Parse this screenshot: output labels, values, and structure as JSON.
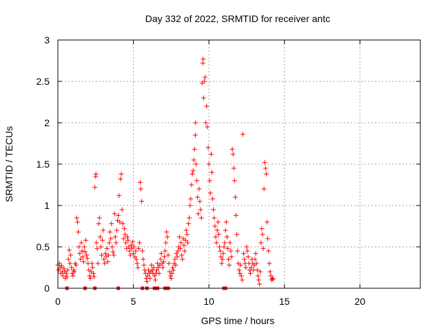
{
  "chart_data": {
    "type": "scatter",
    "title": "Day 332 of 2022, SRMTID for receiver antc",
    "xlabel": "GPS time / hours",
    "ylabel": "SRMTID / TECUs",
    "xlim": [
      0,
      24
    ],
    "ylim": [
      0,
      3
    ],
    "grid": true,
    "x_ticks": [
      0,
      5,
      10,
      15,
      20
    ],
    "x_tick_labels": [
      "0",
      "5",
      "10",
      "15",
      "20"
    ],
    "y_ticks": [
      0,
      0.5,
      1,
      1.5,
      2,
      2.5,
      3
    ],
    "y_tick_labels": [
      "0",
      "0.5",
      "1",
      "1.5",
      "2",
      "2.5",
      "3"
    ],
    "marker": "+",
    "color": "#ff0000",
    "series": [
      {
        "name": "SRMTID",
        "points": [
          [
            0.0,
            0.28
          ],
          [
            0.05,
            0.22
          ],
          [
            0.1,
            0.3
          ],
          [
            0.15,
            0.25
          ],
          [
            0.2,
            0.18
          ],
          [
            0.25,
            0.27
          ],
          [
            0.3,
            0.2
          ],
          [
            0.35,
            0.15
          ],
          [
            0.4,
            0.24
          ],
          [
            0.45,
            0.2
          ],
          [
            0.5,
            0.12
          ],
          [
            0.55,
            0.18
          ],
          [
            0.6,
            0.14
          ],
          [
            0.65,
            0.22
          ],
          [
            0.7,
            0.35
          ],
          [
            0.75,
            0.46
          ],
          [
            0.8,
            0.3
          ],
          [
            0.85,
            0.4
          ],
          [
            0.9,
            0.25
          ],
          [
            0.95,
            0.18
          ],
          [
            1.0,
            0.15
          ],
          [
            1.05,
            0.22
          ],
          [
            1.1,
            0.2
          ],
          [
            1.15,
            0.3
          ],
          [
            1.2,
            0.28
          ],
          [
            1.25,
            0.85
          ],
          [
            1.3,
            0.8
          ],
          [
            1.35,
            0.68
          ],
          [
            1.4,
            0.5
          ],
          [
            1.45,
            0.42
          ],
          [
            1.5,
            0.35
          ],
          [
            1.55,
            0.55
          ],
          [
            1.6,
            0.45
          ],
          [
            1.65,
            0.38
          ],
          [
            1.7,
            0.32
          ],
          [
            1.75,
            0.5
          ],
          [
            1.8,
            0.44
          ],
          [
            1.85,
            0.58
          ],
          [
            1.9,
            0.4
          ],
          [
            1.95,
            0.36
          ],
          [
            2.0,
            0.3
          ],
          [
            2.05,
            0.22
          ],
          [
            2.1,
            0.15
          ],
          [
            2.15,
            0.12
          ],
          [
            2.2,
            0.2
          ],
          [
            2.25,
            0.3
          ],
          [
            2.3,
            0.25
          ],
          [
            2.35,
            0.18
          ],
          [
            2.4,
            0.14
          ],
          [
            2.45,
            1.22
          ],
          [
            2.5,
            1.35
          ],
          [
            2.52,
            1.38
          ],
          [
            2.55,
            0.55
          ],
          [
            2.6,
            0.48
          ],
          [
            2.65,
            0.3
          ],
          [
            2.7,
            0.78
          ],
          [
            2.75,
            0.85
          ],
          [
            2.8,
            0.62
          ],
          [
            2.85,
            0.5
          ],
          [
            2.9,
            0.4
          ],
          [
            2.95,
            0.58
          ],
          [
            3.0,
            0.7
          ],
          [
            3.05,
            0.35
          ],
          [
            3.1,
            0.3
          ],
          [
            3.15,
            0.42
          ],
          [
            3.2,
            0.38
          ],
          [
            3.25,
            0.48
          ],
          [
            3.3,
            0.32
          ],
          [
            3.35,
            0.4
          ],
          [
            3.4,
            0.55
          ],
          [
            3.45,
            0.68
          ],
          [
            3.5,
            0.6
          ],
          [
            3.55,
            0.78
          ],
          [
            3.6,
            0.5
          ],
          [
            3.65,
            0.44
          ],
          [
            3.7,
            0.4
          ],
          [
            3.75,
            0.9
          ],
          [
            3.8,
            0.62
          ],
          [
            3.85,
            0.55
          ],
          [
            3.9,
            0.7
          ],
          [
            3.95,
            0.82
          ],
          [
            4.0,
            0.88
          ],
          [
            4.05,
            1.12
          ],
          [
            4.1,
            0.8
          ],
          [
            4.15,
            1.32
          ],
          [
            4.2,
            1.38
          ],
          [
            4.25,
            0.95
          ],
          [
            4.3,
            0.78
          ],
          [
            4.35,
            0.6
          ],
          [
            4.4,
            0.72
          ],
          [
            4.45,
            0.65
          ],
          [
            4.5,
            0.55
          ],
          [
            4.55,
            0.48
          ],
          [
            4.6,
            0.62
          ],
          [
            4.65,
            0.58
          ],
          [
            4.7,
            0.5
          ],
          [
            4.75,
            0.45
          ],
          [
            4.8,
            0.4
          ],
          [
            4.85,
            0.52
          ],
          [
            4.9,
            0.48
          ],
          [
            4.95,
            0.56
          ],
          [
            5.0,
            0.42
          ],
          [
            5.05,
            0.5
          ],
          [
            5.1,
            0.38
          ],
          [
            5.15,
            0.45
          ],
          [
            5.2,
            0.35
          ],
          [
            5.25,
            0.3
          ],
          [
            5.3,
            0.25
          ],
          [
            5.35,
            0.48
          ],
          [
            5.4,
            0.55
          ],
          [
            5.45,
            1.28
          ],
          [
            5.5,
            1.2
          ],
          [
            5.55,
            1.05
          ],
          [
            5.6,
            0.45
          ],
          [
            5.65,
            0.35
          ],
          [
            5.7,
            0.28
          ],
          [
            5.75,
            0.22
          ],
          [
            5.8,
            0.18
          ],
          [
            5.85,
            0.12
          ],
          [
            5.9,
            0.08
          ],
          [
            5.95,
            0.15
          ],
          [
            6.0,
            0.22
          ],
          [
            6.05,
            0.18
          ],
          [
            6.1,
            0.12
          ],
          [
            6.15,
            0.2
          ],
          [
            6.2,
            0.28
          ],
          [
            6.25,
            0.22
          ],
          [
            6.3,
            0.18
          ],
          [
            6.35,
            0.25
          ],
          [
            6.4,
            0.15
          ],
          [
            6.45,
            0.1
          ],
          [
            6.5,
            0.18
          ],
          [
            6.55,
            0.22
          ],
          [
            6.6,
            0.3
          ],
          [
            6.65,
            0.25
          ],
          [
            6.7,
            0.18
          ],
          [
            6.75,
            0.28
          ],
          [
            6.8,
            0.35
          ],
          [
            6.85,
            0.42
          ],
          [
            6.9,
            0.3
          ],
          [
            6.95,
            0.25
          ],
          [
            7.0,
            0.32
          ],
          [
            7.05,
            0.38
          ],
          [
            7.1,
            0.45
          ],
          [
            7.15,
            0.55
          ],
          [
            7.2,
            0.68
          ],
          [
            7.25,
            0.62
          ],
          [
            7.3,
            0.4
          ],
          [
            7.35,
            0.3
          ],
          [
            7.4,
            0.2
          ],
          [
            7.45,
            0.15
          ],
          [
            7.5,
            0.12
          ],
          [
            7.55,
            0.18
          ],
          [
            7.6,
            0.25
          ],
          [
            7.65,
            0.22
          ],
          [
            7.7,
            0.3
          ],
          [
            7.75,
            0.35
          ],
          [
            7.8,
            0.28
          ],
          [
            7.85,
            0.42
          ],
          [
            7.9,
            0.38
          ],
          [
            7.95,
            0.45
          ],
          [
            8.0,
            0.5
          ],
          [
            8.05,
            0.62
          ],
          [
            8.1,
            0.48
          ],
          [
            8.15,
            0.55
          ],
          [
            8.2,
            0.4
          ],
          [
            8.25,
            0.35
          ],
          [
            8.3,
            0.6
          ],
          [
            8.35,
            0.52
          ],
          [
            8.4,
            0.45
          ],
          [
            8.45,
            0.58
          ],
          [
            8.5,
            0.7
          ],
          [
            8.55,
            0.65
          ],
          [
            8.6,
            0.55
          ],
          [
            8.65,
            0.78
          ],
          [
            8.7,
            0.85
          ],
          [
            8.75,
            1.0
          ],
          [
            8.8,
            1.08
          ],
          [
            8.85,
            1.25
          ],
          [
            8.9,
            1.38
          ],
          [
            8.95,
            1.42
          ],
          [
            9.0,
            1.55
          ],
          [
            9.05,
            1.68
          ],
          [
            9.1,
            1.85
          ],
          [
            9.12,
            2.0
          ],
          [
            9.15,
            1.5
          ],
          [
            9.2,
            1.3
          ],
          [
            9.25,
            1.1
          ],
          [
            9.3,
            0.9
          ],
          [
            9.35,
            1.2
          ],
          [
            9.4,
            1.05
          ],
          [
            9.45,
            0.95
          ],
          [
            9.5,
            0.85
          ],
          [
            9.55,
            2.48
          ],
          [
            9.6,
            2.72
          ],
          [
            9.62,
            2.77
          ],
          [
            9.65,
            2.3
          ],
          [
            9.7,
            2.5
          ],
          [
            9.75,
            2.55
          ],
          [
            9.8,
            2.0
          ],
          [
            9.85,
            2.2
          ],
          [
            9.9,
            1.95
          ],
          [
            9.95,
            1.7
          ],
          [
            10.0,
            1.5
          ],
          [
            10.05,
            1.3
          ],
          [
            10.1,
            1.15
          ],
          [
            10.15,
            1.62
          ],
          [
            10.2,
            1.4
          ],
          [
            10.25,
            1.08
          ],
          [
            10.3,
            0.95
          ],
          [
            10.35,
            0.85
          ],
          [
            10.4,
            0.75
          ],
          [
            10.45,
            0.62
          ],
          [
            10.5,
            0.55
          ],
          [
            10.55,
            0.7
          ],
          [
            10.6,
            0.8
          ],
          [
            10.65,
            0.65
          ],
          [
            10.7,
            0.5
          ],
          [
            10.75,
            0.45
          ],
          [
            10.8,
            0.38
          ],
          [
            10.85,
            0.3
          ],
          [
            10.9,
            0.35
          ],
          [
            10.95,
            0.42
          ],
          [
            11.0,
            0.5
          ],
          [
            11.05,
            0.55
          ],
          [
            11.1,
            0.7
          ],
          [
            11.15,
            0.8
          ],
          [
            11.2,
            0.62
          ],
          [
            11.25,
            0.48
          ],
          [
            11.3,
            0.35
          ],
          [
            11.35,
            0.28
          ],
          [
            11.4,
            0.55
          ],
          [
            11.45,
            0.45
          ],
          [
            11.5,
            0.38
          ],
          [
            11.55,
            1.68
          ],
          [
            11.6,
            1.62
          ],
          [
            11.65,
            1.45
          ],
          [
            11.7,
            1.3
          ],
          [
            11.75,
            1.1
          ],
          [
            11.8,
            0.88
          ],
          [
            11.85,
            0.65
          ],
          [
            11.9,
            0.45
          ],
          [
            11.95,
            0.3
          ],
          [
            12.0,
            0.22
          ],
          [
            12.05,
            0.18
          ],
          [
            12.1,
            0.28
          ],
          [
            12.15,
            0.15
          ],
          [
            12.2,
            0.1
          ],
          [
            12.25,
            1.86
          ],
          [
            12.3,
            0.42
          ],
          [
            12.35,
            0.35
          ],
          [
            12.4,
            0.3
          ],
          [
            12.45,
            0.25
          ],
          [
            12.5,
            0.5
          ],
          [
            12.55,
            0.45
          ],
          [
            12.6,
            0.38
          ],
          [
            12.65,
            0.3
          ],
          [
            12.7,
            0.22
          ],
          [
            12.75,
            0.18
          ],
          [
            12.8,
            0.25
          ],
          [
            12.85,
            0.35
          ],
          [
            12.9,
            0.3
          ],
          [
            12.95,
            0.22
          ],
          [
            13.0,
            0.28
          ],
          [
            13.05,
            0.35
          ],
          [
            13.1,
            0.42
          ],
          [
            13.15,
            0.3
          ],
          [
            13.2,
            0.22
          ],
          [
            13.25,
            0.15
          ],
          [
            13.3,
            0.1
          ],
          [
            13.35,
            0.05
          ],
          [
            13.4,
            0.2
          ],
          [
            13.45,
            0.55
          ],
          [
            13.5,
            0.72
          ],
          [
            13.55,
            0.65
          ],
          [
            13.6,
            0.48
          ],
          [
            13.65,
            1.2
          ],
          [
            13.7,
            1.52
          ],
          [
            13.75,
            1.45
          ],
          [
            13.8,
            1.38
          ],
          [
            13.85,
            0.8
          ],
          [
            13.9,
            0.6
          ],
          [
            13.95,
            0.45
          ],
          [
            14.0,
            0.3
          ],
          [
            14.05,
            0.2
          ],
          [
            14.1,
            0.15
          ],
          [
            14.15,
            0.1
          ],
          [
            14.2,
            0.12
          ],
          [
            14.25,
            0.11
          ]
        ]
      }
    ],
    "zero_markers_x": [
      0.6,
      1.8,
      2.45,
      4.0,
      5.6,
      5.9,
      6.4,
      6.6,
      7.1,
      7.3,
      11.0,
      11.05,
      11.1
    ]
  }
}
